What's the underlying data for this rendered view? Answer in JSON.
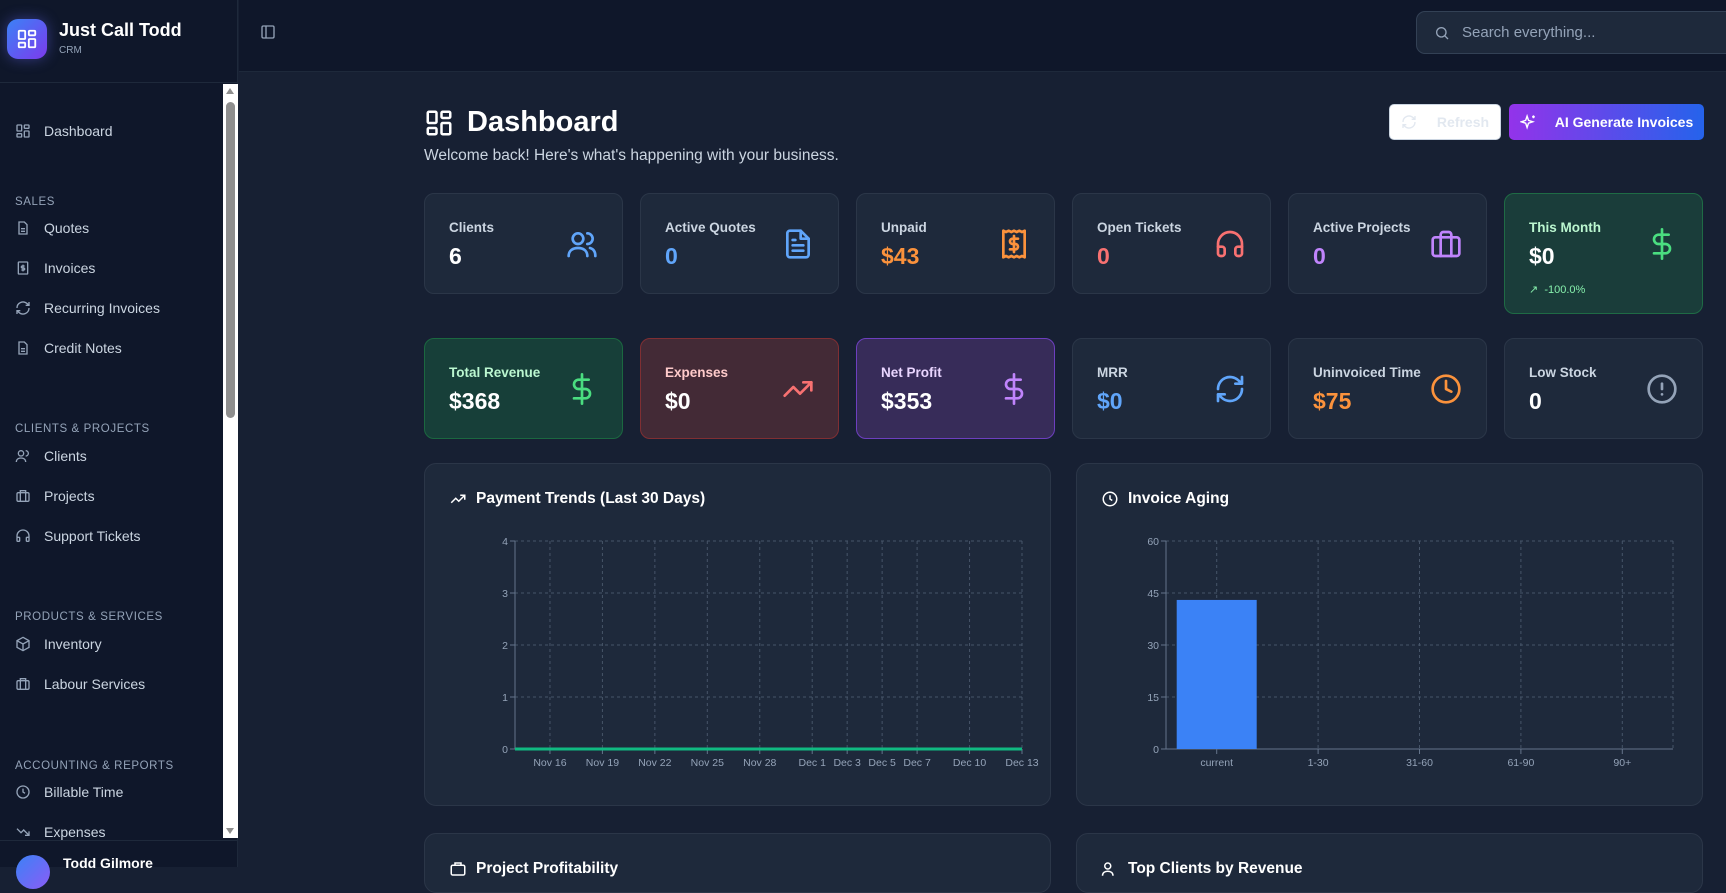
{
  "brand": {
    "name": "Just Call Todd",
    "sub": "CRM",
    "icon": "grid-icon"
  },
  "sidebar": {
    "dashboard": "Dashboard",
    "sections": [
      {
        "title": "SALES",
        "items": [
          "Quotes",
          "Invoices",
          "Recurring Invoices",
          "Credit Notes"
        ]
      },
      {
        "title": "CLIENTS & PROJECTS",
        "items": [
          "Clients",
          "Projects",
          "Support Tickets"
        ]
      },
      {
        "title": "PRODUCTS & SERVICES",
        "items": [
          "Inventory",
          "Labour Services"
        ]
      },
      {
        "title": "ACCOUNTING & REPORTS",
        "items": [
          "Billable Time",
          "Expenses"
        ]
      }
    ],
    "user": "Todd Gilmore"
  },
  "search": {
    "placeholder": "Search everything..."
  },
  "header": {
    "title": "Dashboard",
    "subtitle": "Welcome back! Here's what's happening with your business.",
    "refresh": "Refresh",
    "ai": "AI Generate Invoices"
  },
  "stats": [
    {
      "label": "Clients",
      "value": "6",
      "color": "#ffffff",
      "icon": "users-icon"
    },
    {
      "label": "Active Quotes",
      "value": "0",
      "color": "#60a5fa",
      "icon": "document-icon"
    },
    {
      "label": "Unpaid",
      "value": "$43",
      "color": "#fb923c",
      "icon": "receipt-icon"
    },
    {
      "label": "Open Tickets",
      "value": "0",
      "color": "#f87171",
      "icon": "headphones-icon"
    },
    {
      "label": "Active Projects",
      "value": "0",
      "color": "#c084fc",
      "icon": "briefcase-icon"
    },
    {
      "label": "This Month",
      "value": "$0",
      "color": "#ffffff",
      "icon": "dollar-icon",
      "trend": "-100.0%"
    },
    {
      "label": "Total Revenue",
      "value": "$368",
      "color": "#ffffff",
      "icon": "dollar-icon"
    },
    {
      "label": "Expenses",
      "value": "$0",
      "color": "#ffffff",
      "icon": "trending-up-icon"
    },
    {
      "label": "Net Profit",
      "value": "$353",
      "color": "#ffffff",
      "icon": "dollar-icon"
    },
    {
      "label": "MRR",
      "value": "$0",
      "color": "#60a5fa",
      "icon": "refresh-icon"
    },
    {
      "label": "Uninvoiced Time",
      "value": "$75",
      "color": "#fb923c",
      "icon": "clock-icon"
    },
    {
      "label": "Low Stock",
      "value": "0",
      "color": "#ffffff",
      "icon": "alert-circle-icon"
    }
  ],
  "panels": {
    "project": "Project Profitability",
    "clients": "Top Clients by Revenue"
  },
  "chart_data": [
    {
      "type": "line",
      "title": "Payment Trends (Last 30 Days)",
      "color": "#10b981",
      "grid": true,
      "ylim": [
        0,
        4
      ],
      "yticks": [
        0,
        1,
        2,
        3,
        4
      ],
      "x": [
        "Nov 14",
        "Nov 15",
        "Nov 16",
        "Nov 17",
        "Nov 18",
        "Nov 19",
        "Nov 20",
        "Nov 21",
        "Nov 22",
        "Nov 23",
        "Nov 24",
        "Nov 25",
        "Nov 26",
        "Nov 27",
        "Nov 28",
        "Nov 29",
        "Nov 30",
        "Dec 1",
        "Dec 2",
        "Dec 3",
        "Dec 4",
        "Dec 5",
        "Dec 6",
        "Dec 7",
        "Dec 8",
        "Dec 9",
        "Dec 10",
        "Dec 11",
        "Dec 12",
        "Dec 13"
      ],
      "xticks": [
        "Nov 16",
        "Nov 19",
        "Nov 22",
        "Nov 25",
        "Nov 28",
        "Dec 1",
        "Dec 3",
        "Dec 5",
        "Dec 7",
        "Dec 10",
        "Dec 13"
      ],
      "values": [
        0,
        0,
        0,
        0,
        0,
        0,
        0,
        0,
        0,
        0,
        0,
        0,
        0,
        0,
        0,
        0,
        0,
        0,
        0,
        0,
        0,
        0,
        0,
        0,
        0,
        0,
        0,
        0,
        0,
        0
      ]
    },
    {
      "type": "bar",
      "title": "Invoice Aging",
      "color": "#3b82f6",
      "grid": true,
      "ylim": [
        0,
        60
      ],
      "yticks": [
        0,
        15,
        30,
        45,
        60
      ],
      "categories": [
        "current",
        "1-30",
        "31-60",
        "61-90",
        "90+"
      ],
      "values": [
        43,
        0,
        0,
        0,
        0
      ]
    }
  ]
}
